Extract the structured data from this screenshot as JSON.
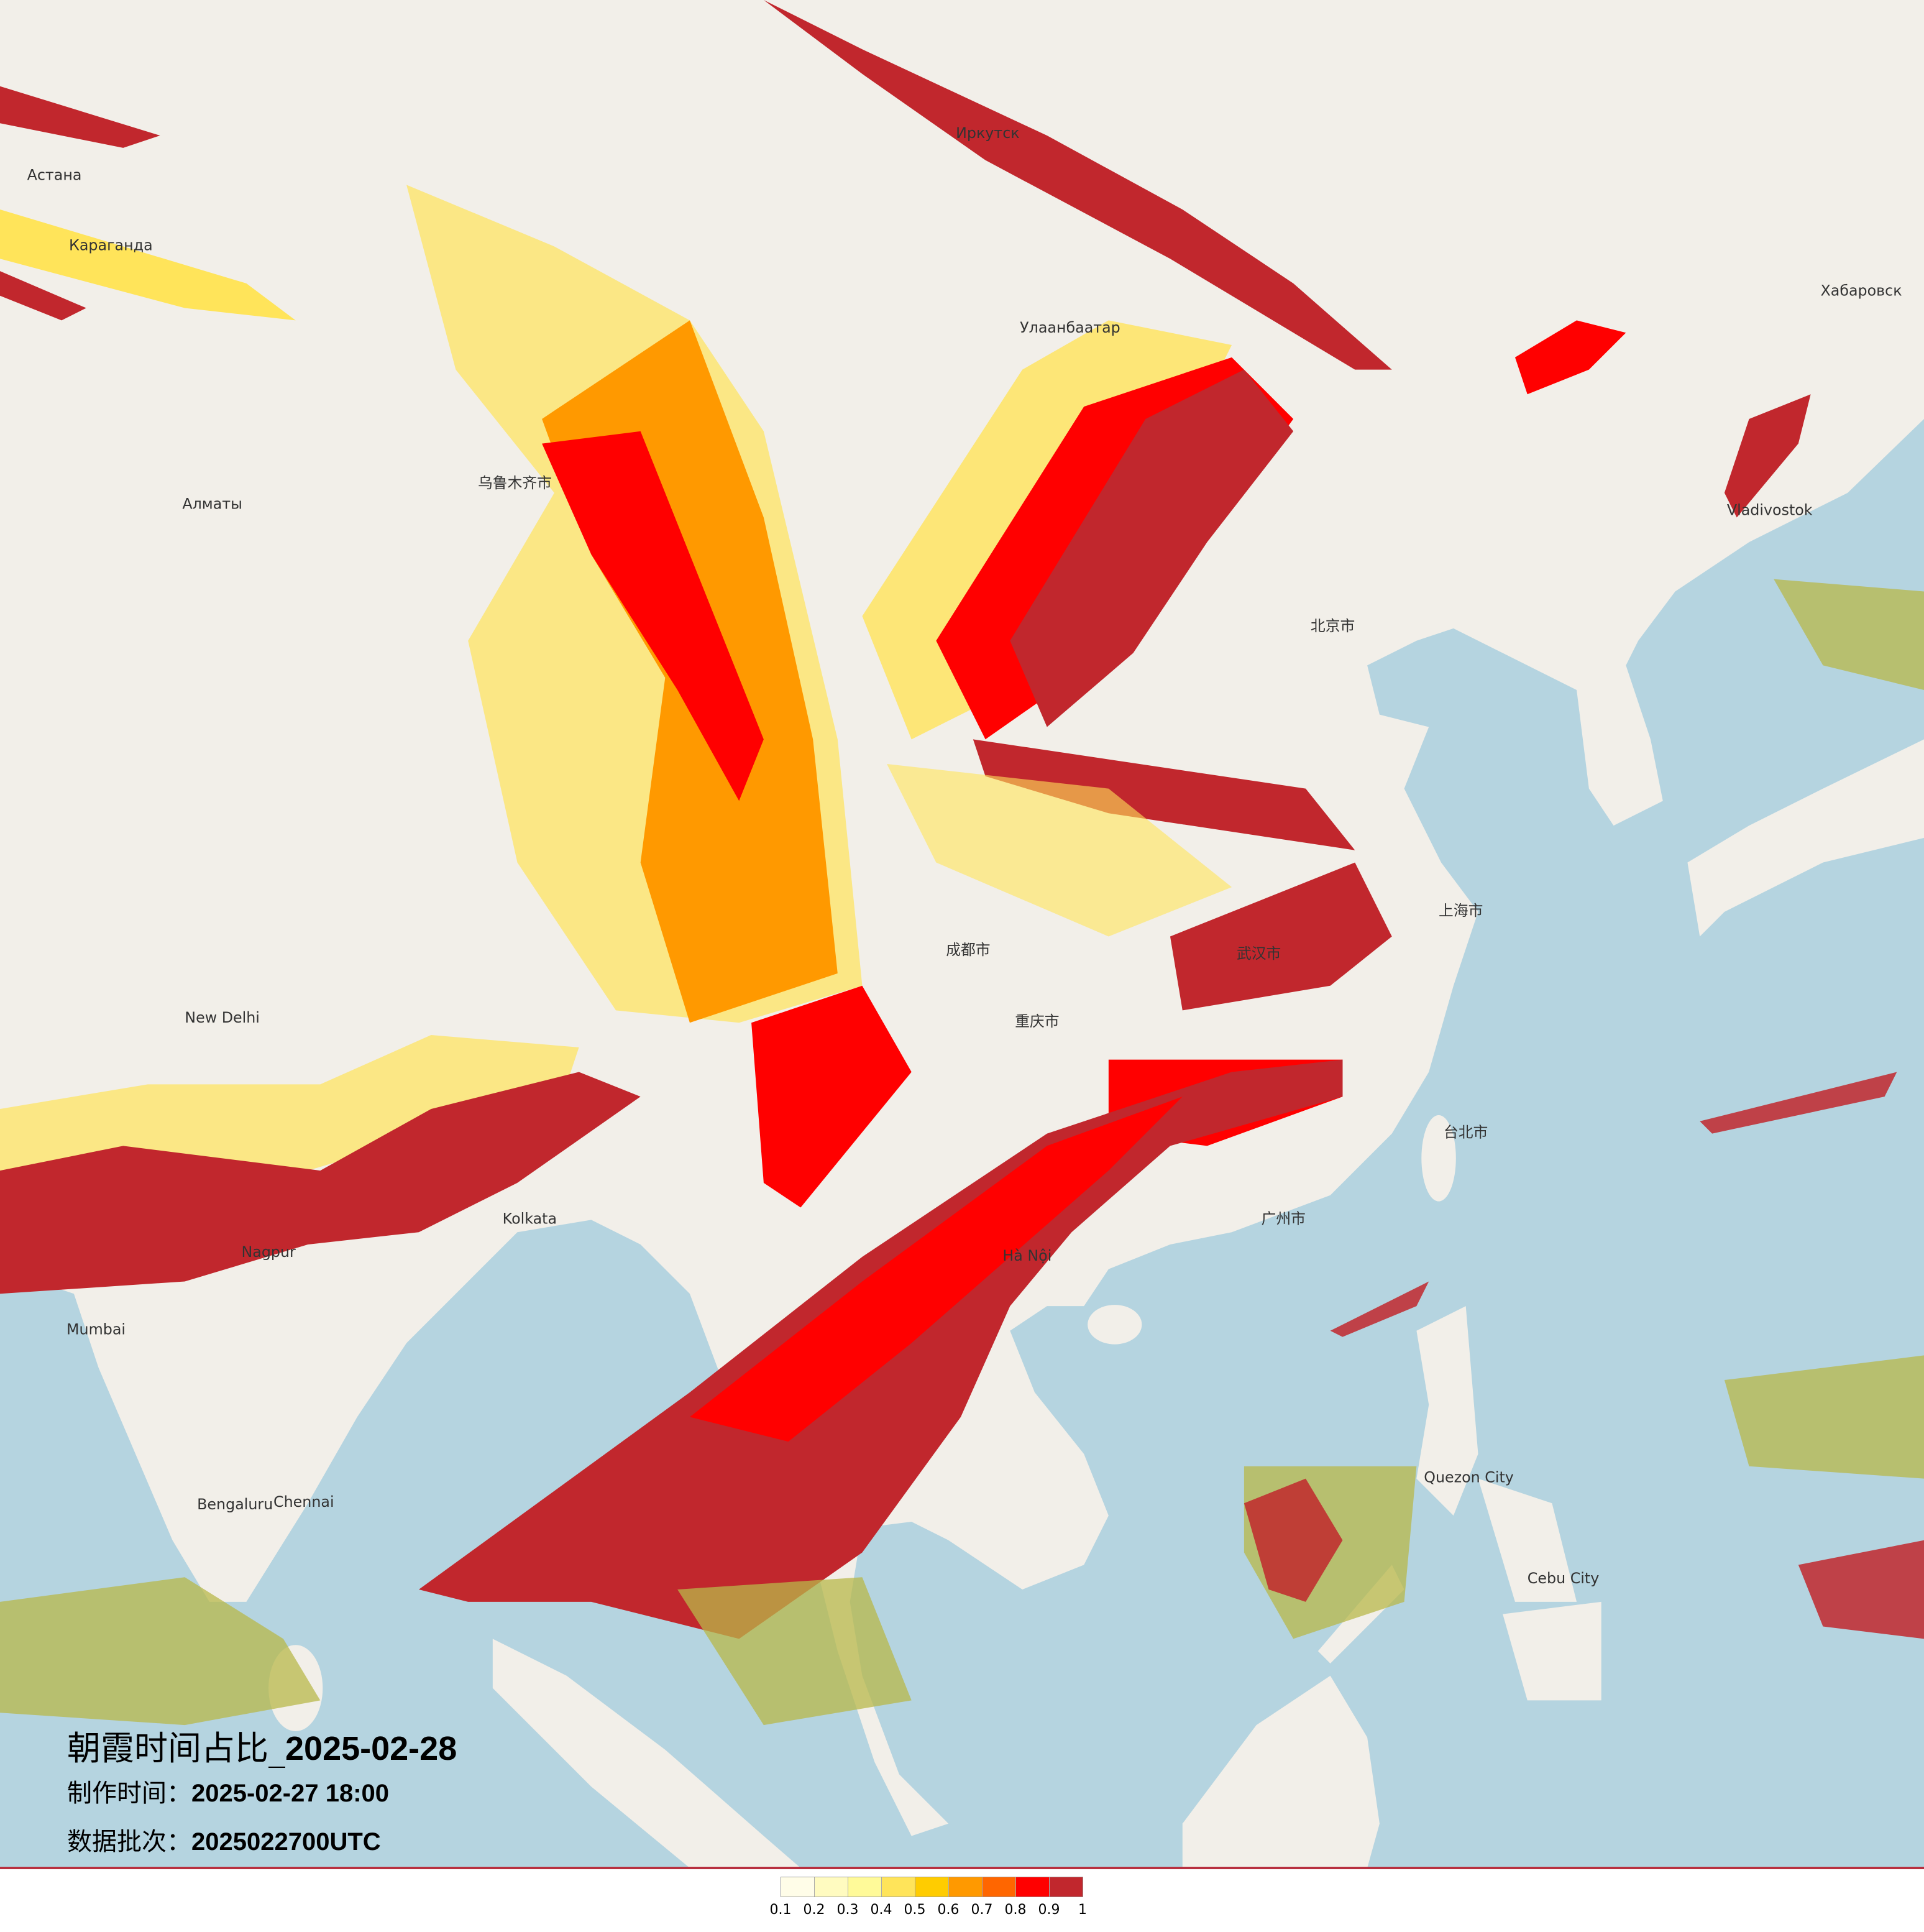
{
  "title": {
    "main_cn": "朝霞时间占比_",
    "main_date": "2025-02-28",
    "made_label": "制作时间：",
    "made_value": "2025-02-27 18:00",
    "batch_label": "数据批次：",
    "batch_value": "2025022700UTC"
  },
  "map_colors": {
    "land": "#f2efe9",
    "sea": "#b5d4e0",
    "sea_cloud": "#b8b84a"
  },
  "legend": {
    "colors": [
      "#fffde8",
      "#fffbc0",
      "#fffa99",
      "#ffe45a",
      "#ffcc00",
      "#ff9900",
      "#ff6600",
      "#ff0000",
      "#c1272d"
    ],
    "labels": [
      "0.1",
      "0.2",
      "0.3",
      "0.4",
      "0.5",
      "0.6",
      "0.7",
      "0.8",
      "0.9",
      "1"
    ]
  },
  "cities": [
    {
      "name": "Улаанбаатар"
    },
    {
      "name": "Алматы"
    },
    {
      "name": "Астана"
    },
    {
      "name": "Караганда"
    },
    {
      "name": "Иркутск"
    },
    {
      "name": "Хабаровск"
    },
    {
      "name": "乌鲁木齐市"
    },
    {
      "name": "New Delhi"
    },
    {
      "name": "Mumbai"
    },
    {
      "name": "Bengaluru"
    },
    {
      "name": "Chennai"
    },
    {
      "name": "Kolkata"
    },
    {
      "name": "Nagpur"
    },
    {
      "name": "北京市"
    },
    {
      "name": "上海市"
    },
    {
      "name": "武汉市"
    },
    {
      "name": "重庆市"
    },
    {
      "name": "成都市"
    },
    {
      "name": "广州市"
    },
    {
      "name": "台北市"
    },
    {
      "name": "Hà Nội"
    },
    {
      "name": "Quezon City"
    },
    {
      "name": "Cebu City"
    },
    {
      "name": "Vladivostok"
    }
  ]
}
